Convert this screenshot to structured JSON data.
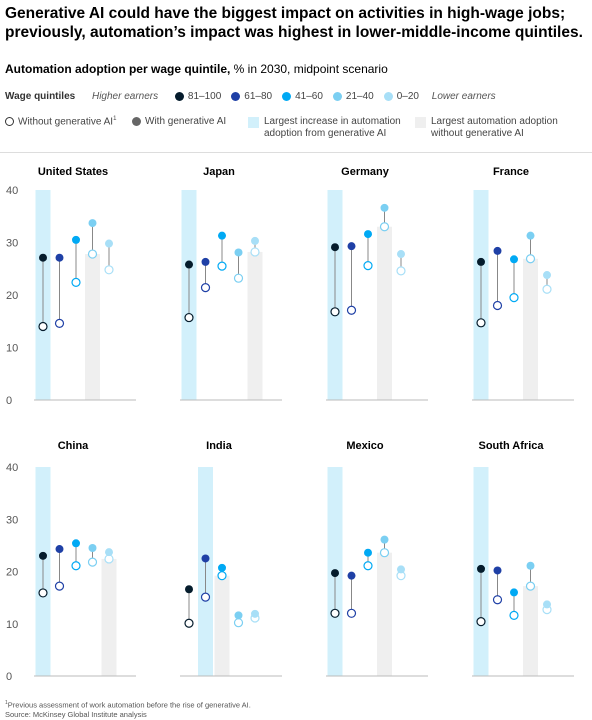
{
  "title": "Generative AI could have the biggest impact on activities in high-wage jobs; previously, automation’s impact was highest in lower-middle-income quintiles.",
  "subtitle_bold": "Automation adoption per wage quintile,",
  "subtitle_rest": " % in 2030, midpoint scenario",
  "legend": {
    "wage_quintiles_label": "Wage quintiles",
    "higher_earners": "Higher earners",
    "lower_earners": "Lower earners",
    "quintiles": [
      {
        "label": "81–100",
        "color": "#051c2c"
      },
      {
        "label": "61–80",
        "color": "#1f40a6"
      },
      {
        "label": "41–60",
        "color": "#00a9f4"
      },
      {
        "label": "21–40",
        "color": "#7bcff2"
      },
      {
        "label": "0–20",
        "color": "#a8dff7"
      }
    ],
    "without_genai": "Without generative AI",
    "footnote_mark": "1",
    "with_genai": "With generative AI",
    "largest_increase": "Largest increase in automation adoption from generative AI",
    "largest_increase_color": "#d2f0fb",
    "largest_without": "Largest automation adoption without generative AI",
    "largest_without_color": "#efefef"
  },
  "chart_data": [
    {
      "type": "dumbbell",
      "title": "United States",
      "ylim": [
        0,
        40
      ],
      "yticks": [
        "0",
        "10",
        "20",
        "30",
        "40"
      ],
      "series": [
        "81–100",
        "61–80",
        "41–60",
        "21–40",
        "0–20"
      ],
      "without_genai": [
        14.0,
        14.6,
        22.4,
        27.8,
        24.8
      ],
      "with_genai": [
        27.1,
        27.1,
        30.5,
        33.7,
        29.8
      ],
      "largest_increase_index": 0,
      "largest_without_index": 3
    },
    {
      "type": "dumbbell",
      "title": "Japan",
      "ylim": [
        0,
        40
      ],
      "yticks": [
        "0",
        "10",
        "20",
        "30",
        "40"
      ],
      "series": [
        "81–100",
        "61–80",
        "41–60",
        "21–40",
        "0–20"
      ],
      "without_genai": [
        15.7,
        21.4,
        25.5,
        23.2,
        28.2
      ],
      "with_genai": [
        25.8,
        26.3,
        31.3,
        28.1,
        30.3
      ],
      "largest_increase_index": 0,
      "largest_without_index": 4
    },
    {
      "type": "dumbbell",
      "title": "Germany",
      "ylim": [
        0,
        40
      ],
      "yticks": [
        "0",
        "10",
        "20",
        "30",
        "40"
      ],
      "series": [
        "81–100",
        "61–80",
        "41–60",
        "21–40",
        "0–20"
      ],
      "without_genai": [
        16.8,
        17.1,
        25.6,
        33.0,
        24.6
      ],
      "with_genai": [
        29.1,
        29.3,
        31.6,
        36.6,
        27.8
      ],
      "largest_increase_index": 0,
      "largest_without_index": 3
    },
    {
      "type": "dumbbell",
      "title": "France",
      "ylim": [
        0,
        40
      ],
      "yticks": [
        "0",
        "10",
        "20",
        "30",
        "40"
      ],
      "series": [
        "81–100",
        "61–80",
        "41–60",
        "21–40",
        "0–20"
      ],
      "without_genai": [
        14.7,
        18.0,
        19.5,
        26.9,
        21.1
      ],
      "with_genai": [
        26.3,
        28.4,
        26.8,
        31.3,
        23.8
      ],
      "largest_increase_index": 0,
      "largest_without_index": 3
    },
    {
      "type": "dumbbell",
      "title": "China",
      "ylim": [
        0,
        40
      ],
      "yticks": [
        "0",
        "10",
        "20",
        "30",
        "40"
      ],
      "series": [
        "81–100",
        "61–80",
        "41–60",
        "21–40",
        "0–20"
      ],
      "without_genai": [
        15.9,
        17.2,
        21.1,
        21.8,
        22.4
      ],
      "with_genai": [
        23.0,
        24.3,
        25.4,
        24.5,
        23.7
      ],
      "largest_increase_index": 0,
      "largest_without_index": 4
    },
    {
      "type": "dumbbell",
      "title": "India",
      "ylim": [
        0,
        40
      ],
      "yticks": [
        "0",
        "10",
        "20",
        "30",
        "40"
      ],
      "series": [
        "81–100",
        "61–80",
        "41–60",
        "21–40",
        "0–20"
      ],
      "without_genai": [
        10.1,
        15.1,
        19.2,
        10.2,
        11.1
      ],
      "with_genai": [
        16.6,
        22.5,
        20.7,
        11.6,
        11.9
      ],
      "largest_increase_index": 1,
      "largest_without_index": 2
    },
    {
      "type": "dumbbell",
      "title": "Mexico",
      "ylim": [
        0,
        40
      ],
      "yticks": [
        "0",
        "10",
        "20",
        "30",
        "40"
      ],
      "series": [
        "81–100",
        "61–80",
        "41–60",
        "21–40",
        "0–20"
      ],
      "without_genai": [
        12.0,
        12.0,
        21.1,
        23.6,
        19.2
      ],
      "with_genai": [
        19.7,
        19.2,
        23.6,
        26.1,
        20.4
      ],
      "largest_increase_index": 0,
      "largest_without_index": 3
    },
    {
      "type": "dumbbell",
      "title": "South Africa",
      "ylim": [
        0,
        40
      ],
      "yticks": [
        "0",
        "10",
        "20",
        "30",
        "40"
      ],
      "series": [
        "81–100",
        "61–80",
        "41–60",
        "21–40",
        "0–20"
      ],
      "without_genai": [
        10.4,
        14.6,
        11.6,
        17.2,
        12.7
      ],
      "with_genai": [
        20.5,
        20.2,
        16.0,
        21.1,
        13.7
      ],
      "largest_increase_index": 0,
      "largest_without_index": 3
    }
  ],
  "footnote": "Previous assessment of work automation before the rise of generative AI.",
  "source": "Source: McKinsey Global Institute analysis"
}
